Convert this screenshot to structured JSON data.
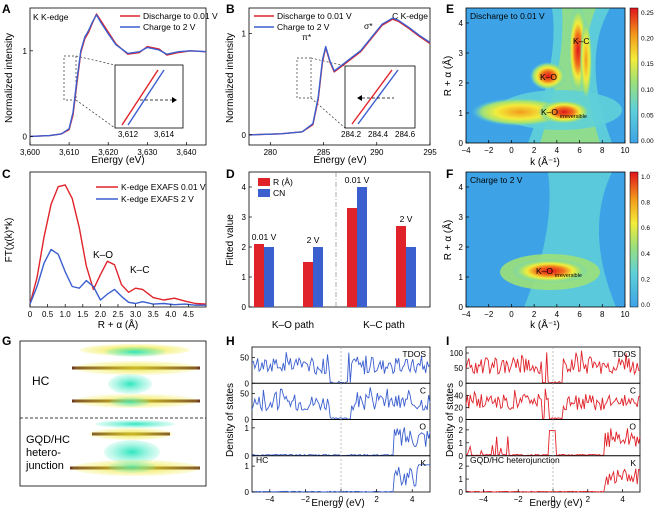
{
  "colors": {
    "red": "#e0232a",
    "blue": "#3b5fcf",
    "navy": "#1f2f8a"
  },
  "chart_data": [
    {
      "panel": "A",
      "type": "line",
      "title_label": "K K-edge",
      "xlabel": "Energy (eV)",
      "ylabel": "Normalized intensity",
      "xlim": [
        3600,
        3645
      ],
      "ylim": [
        -0.1,
        1.5
      ],
      "xticks": [
        "3,600",
        "3,610",
        "3,620",
        "3,630",
        "3,640"
      ],
      "xtick_vals": [
        3600,
        3610,
        3620,
        3630,
        3640
      ],
      "yticks": [
        "0",
        "1"
      ],
      "ytick_vals": [
        0,
        1
      ],
      "series": [
        {
          "name": "Discharge to 0.01 V",
          "color": "#e0232a",
          "x": [
            3600,
            3605,
            3608,
            3610,
            3611,
            3612,
            3613,
            3614,
            3615,
            3616,
            3617,
            3618,
            3620,
            3622,
            3625,
            3628,
            3630,
            3633,
            3635,
            3638,
            3641,
            3645
          ],
          "y": [
            0,
            0.01,
            0.03,
            0.08,
            0.25,
            0.62,
            0.98,
            1.14,
            1.22,
            1.33,
            1.43,
            1.36,
            1.22,
            1.08,
            0.96,
            0.98,
            1.05,
            1.02,
            0.95,
            0.98,
            1.0,
            0.99
          ]
        },
        {
          "name": "Charge to 2 V",
          "color": "#3b5fcf",
          "x": [
            3600,
            3605,
            3608,
            3610,
            3611,
            3612,
            3613,
            3614,
            3615,
            3616,
            3617,
            3618,
            3620,
            3622,
            3625,
            3628,
            3630,
            3633,
            3635,
            3638,
            3641,
            3645
          ],
          "y": [
            0,
            0.01,
            0.03,
            0.09,
            0.28,
            0.66,
            1.0,
            1.16,
            1.24,
            1.34,
            1.42,
            1.34,
            1.2,
            1.07,
            0.97,
            0.99,
            1.04,
            1.01,
            0.96,
            0.99,
            1.0,
            0.99
          ]
        }
      ],
      "inset": {
        "xticks": [
          "3,612",
          "3,614"
        ]
      }
    },
    {
      "panel": "B",
      "type": "line",
      "title_label": "C K-edge",
      "xlabel": "Energy (eV)",
      "ylabel": "Normalized intensity",
      "xlim": [
        278,
        295
      ],
      "ylim": [
        -0.1,
        1.25
      ],
      "xticks": [
        "280",
        "285",
        "290",
        "295"
      ],
      "xtick_vals": [
        280,
        285,
        290,
        295
      ],
      "yticks": [
        "0",
        "1"
      ],
      "ytick_vals": [
        0,
        1
      ],
      "annotations": [
        "π*",
        "σ*"
      ],
      "series": [
        {
          "name": "Discharge to 0.01 V",
          "color": "#e0232a",
          "x": [
            278,
            281,
            283,
            284,
            284.5,
            284.9,
            285.2,
            285.6,
            286,
            286.5,
            287.5,
            288.5,
            289.5,
            290.5,
            291.5,
            292,
            293,
            294,
            295
          ],
          "y": [
            0,
            0.01,
            0.03,
            0.1,
            0.35,
            0.72,
            0.86,
            0.72,
            0.62,
            0.66,
            0.74,
            0.82,
            0.95,
            1.08,
            1.14,
            1.12,
            1.05,
            0.97,
            0.9
          ]
        },
        {
          "name": "Charge to 2 V",
          "color": "#3b5fcf",
          "x": [
            278,
            281,
            283,
            284,
            284.5,
            284.9,
            285.2,
            285.6,
            286,
            286.5,
            287.5,
            288.5,
            289.5,
            290.5,
            291.5,
            292,
            293,
            294,
            295
          ],
          "y": [
            0,
            0.01,
            0.03,
            0.11,
            0.37,
            0.74,
            0.87,
            0.73,
            0.63,
            0.67,
            0.75,
            0.83,
            0.96,
            1.09,
            1.15,
            1.13,
            1.06,
            0.98,
            0.91
          ]
        }
      ],
      "inset": {
        "xticks": [
          "284.2",
          "284.4",
          "284.6"
        ]
      }
    },
    {
      "panel": "C",
      "type": "line",
      "xlabel": "R + α (Å)",
      "ylabel": "FT(χ(k)*k)",
      "xlim": [
        0,
        5
      ],
      "ylim": [
        0,
        2.3
      ],
      "xticks": [
        "0",
        "0.5",
        "1.0",
        "1.5",
        "2.0",
        "2.5",
        "3.0",
        "3.5",
        "4.0",
        "4.5"
      ],
      "xtick_vals": [
        0,
        0.5,
        1.0,
        1.5,
        2.0,
        2.5,
        3.0,
        3.5,
        4.0,
        4.5
      ],
      "annotations": [
        "K–O",
        "K–C"
      ],
      "series": [
        {
          "name": "K-edge EXAFS 0.01 V",
          "color": "#e0232a",
          "x": [
            0,
            0.2,
            0.4,
            0.6,
            0.8,
            1.0,
            1.2,
            1.4,
            1.6,
            1.8,
            2.0,
            2.2,
            2.4,
            2.6,
            2.8,
            3.0,
            3.2,
            3.5,
            3.8,
            4.1,
            4.4,
            4.7,
            5.0
          ],
          "y": [
            0.05,
            0.5,
            1.2,
            1.75,
            2.05,
            2.08,
            1.85,
            1.35,
            0.7,
            0.3,
            0.55,
            0.78,
            0.72,
            0.38,
            0.25,
            0.32,
            0.3,
            0.16,
            0.12,
            0.15,
            0.1,
            0.06,
            0.05
          ]
        },
        {
          "name": "K-edge EXAFS 2 V",
          "color": "#3b5fcf",
          "x": [
            0,
            0.2,
            0.4,
            0.6,
            0.8,
            1.0,
            1.2,
            1.4,
            1.6,
            1.8,
            2.0,
            2.2,
            2.4,
            2.6,
            2.8,
            3.0,
            3.2,
            3.5,
            3.8,
            4.1,
            4.4,
            4.7,
            5.0
          ],
          "y": [
            0.05,
            0.35,
            0.75,
            0.98,
            0.9,
            0.6,
            0.35,
            0.32,
            0.45,
            0.35,
            0.12,
            0.22,
            0.3,
            0.18,
            0.08,
            0.06,
            0.09,
            0.05,
            0.06,
            0.04,
            0.05,
            0.03,
            0.03
          ]
        }
      ]
    },
    {
      "panel": "D",
      "type": "bar",
      "ylabel": "Fitted value",
      "ylim": [
        0,
        4.5
      ],
      "yticks": [
        "0",
        "1",
        "2",
        "3",
        "4"
      ],
      "ytick_vals": [
        0,
        1,
        2,
        3,
        4
      ],
      "legend": [
        "R (Å)",
        "CN"
      ],
      "groups": [
        "K–O path",
        "K–C path"
      ],
      "categories": [
        "0.01 V",
        "2 V",
        "0.01 V",
        "2 V"
      ],
      "series": [
        {
          "name": "R (Å)",
          "color": "#e0232a",
          "values": [
            2.1,
            1.5,
            3.3,
            2.7
          ]
        },
        {
          "name": "CN",
          "color": "#3b5fcf",
          "values": [
            2.0,
            2.0,
            4.0,
            2.0
          ]
        }
      ]
    },
    {
      "panel": "E",
      "type": "heatmap",
      "title_label": "Discharge to 0.01 V",
      "xlabel": "k (Å⁻¹)",
      "ylabel": "R + α (Å)",
      "xlim": [
        -4,
        10
      ],
      "ylim": [
        0,
        4.5
      ],
      "xticks": [
        "−4",
        "−2",
        "0",
        "2",
        "4",
        "6",
        "8",
        "10"
      ],
      "yticks": [
        "0",
        "1",
        "2",
        "3",
        "4"
      ],
      "colorbar_ticks": [
        "0.00",
        "0.05",
        "0.10",
        "0.15",
        "0.20",
        "0.25"
      ],
      "annotations": [
        "K–C",
        "K–O",
        "K–O",
        "irreversible"
      ]
    },
    {
      "panel": "F",
      "type": "heatmap",
      "title_label": "Charge to 2 V",
      "xlabel": "k (Å⁻¹)",
      "ylabel": "R + α (Å)",
      "xlim": [
        -4,
        10
      ],
      "ylim": [
        0,
        4.5
      ],
      "xticks": [
        "−4",
        "−2",
        "0",
        "2",
        "4",
        "6",
        "8",
        "10"
      ],
      "yticks": [
        "0",
        "1",
        "2",
        "3",
        "4"
      ],
      "colorbar_ticks": [
        "0.0",
        "0.2",
        "0.4",
        "0.6",
        "0.8",
        "1.0"
      ],
      "annotations": [
        "K–O",
        "irreversible"
      ]
    },
    {
      "panel": "G",
      "type": "table",
      "labels": [
        "HC",
        "GQD/HC",
        "hetero-",
        "junction"
      ]
    },
    {
      "panel": "H",
      "type": "line",
      "xlabel": "Energy (eV)",
      "ylabel": "Density of states",
      "xlim": [
        -5,
        5
      ],
      "xticks": [
        "−4",
        "−2",
        "0",
        "2",
        "4"
      ],
      "xtick_vals": [
        -4,
        -2,
        0,
        2,
        4
      ],
      "system": "HC",
      "subplots": [
        {
          "label": "TDOS",
          "ylim": [
            0,
            70
          ],
          "yticks": [
            "0",
            "50"
          ],
          "ytick_vals": [
            0,
            50
          ]
        },
        {
          "label": "C",
          "ylim": [
            0,
            70
          ],
          "yticks": [
            "0",
            "50"
          ],
          "ytick_vals": [
            0,
            50
          ]
        },
        {
          "label": "O",
          "ylim": [
            0,
            1.3
          ],
          "yticks": [
            "0",
            "1"
          ],
          "ytick_vals": [
            0,
            1
          ]
        },
        {
          "label": "K",
          "ylim": [
            0,
            1.4
          ],
          "yticks": [
            "0",
            "1"
          ],
          "ytick_vals": [
            0,
            1
          ]
        }
      ]
    },
    {
      "panel": "I",
      "type": "line",
      "xlabel": "Energy (eV)",
      "ylabel": "Density of states",
      "xlim": [
        -5,
        5
      ],
      "xticks": [
        "−4",
        "−2",
        "0",
        "2",
        "4"
      ],
      "xtick_vals": [
        -4,
        -2,
        0,
        2,
        4
      ],
      "system": "GQD/HC heterojunction",
      "subplots": [
        {
          "label": "TDOS",
          "ylim": [
            0,
            120
          ],
          "yticks": [
            "0",
            "50",
            "100"
          ],
          "ytick_vals": [
            0,
            50,
            100
          ]
        },
        {
          "label": "C",
          "ylim": [
            0,
            60
          ],
          "yticks": [
            "0",
            "20",
            "40"
          ],
          "ytick_vals": [
            0,
            20,
            40
          ]
        },
        {
          "label": "O",
          "ylim": [
            0,
            2.8
          ],
          "yticks": [
            "0",
            "1",
            "2"
          ],
          "ytick_vals": [
            0,
            1,
            2
          ]
        },
        {
          "label": "K",
          "ylim": [
            0,
            2.8
          ],
          "yticks": [
            "0",
            "1",
            "2"
          ],
          "ytick_vals": [
            0,
            1,
            2
          ]
        }
      ]
    }
  ]
}
